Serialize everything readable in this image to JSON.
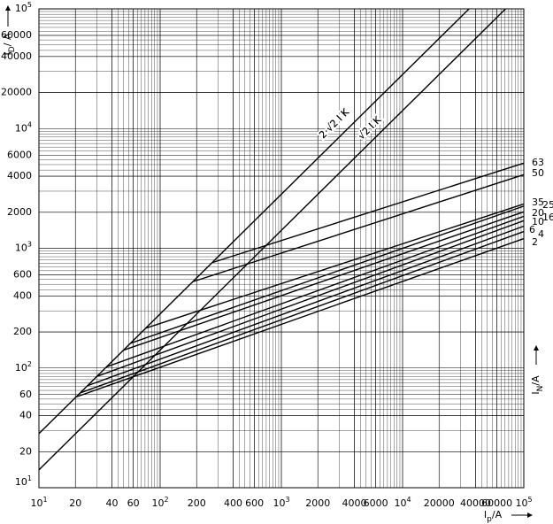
{
  "chart_data": {
    "type": "line",
    "log_x": true,
    "log_y": true,
    "grid": "log-minor",
    "x_label": {
      "symbol": "I",
      "sub": "p",
      "unit": "/A"
    },
    "y_label": {
      "symbol": "I",
      "sub": "D",
      "unit": "/ A"
    },
    "legend_label": {
      "symbol": "I",
      "sub": "N",
      "unit": "/A"
    },
    "xlim": [
      10,
      100000
    ],
    "ylim": [
      10,
      100000
    ],
    "xticks": [
      {
        "value": 10,
        "label": "10",
        "exp": "1"
      },
      20,
      40,
      60,
      {
        "value": 100,
        "label": "10",
        "exp": "2"
      },
      200,
      400,
      600,
      {
        "value": 1000,
        "label": "10",
        "exp": "3"
      },
      2000,
      4000,
      6000,
      {
        "value": 10000,
        "label": "10",
        "exp": "4"
      },
      20000,
      40000,
      60000,
      {
        "value": 100000,
        "label": "10",
        "exp": "5"
      }
    ],
    "yticks": [
      {
        "value": 10,
        "label": "10",
        "exp": "1"
      },
      20,
      40,
      60,
      {
        "value": 100,
        "label": "10",
        "exp": "2"
      },
      200,
      400,
      600,
      {
        "value": 1000,
        "label": "10",
        "exp": "3"
      },
      2000,
      4000,
      6000,
      {
        "value": 10000,
        "label": "10",
        "exp": "4"
      },
      20000,
      40000,
      60000,
      {
        "value": 100000,
        "label": "10",
        "exp": "5"
      }
    ],
    "reference_lines": [
      {
        "name": "2·√2 I K",
        "color": "#000000",
        "x": [
          10,
          35355
        ],
        "values": [
          28.3,
          100000
        ]
      },
      {
        "name": "√2 I K",
        "color": "#000000",
        "x": [
          10,
          70711
        ],
        "values": [
          14.1,
          100000
        ]
      }
    ],
    "series": [
      {
        "name": "63",
        "color": "#000000",
        "x": [
          270,
          100000
        ],
        "values": [
          760,
          5140
        ]
      },
      {
        "name": "50",
        "color": "#000000",
        "x": [
          186,
          100000
        ],
        "values": [
          526,
          4120
        ]
      },
      {
        "name": "35",
        "color": "#000000",
        "x": [
          76,
          100000
        ],
        "values": [
          215,
          2345
        ]
      },
      {
        "name": "25",
        "color": "#000000",
        "x": [
          57,
          100000
        ],
        "values": [
          161,
          2250
        ]
      },
      {
        "name": "20",
        "color": "#000000",
        "x": [
          50,
          100000
        ],
        "values": [
          141,
          2015
        ]
      },
      {
        "name": "16",
        "color": "#000000",
        "x": [
          36,
          100000
        ],
        "values": [
          102,
          1850
        ]
      },
      {
        "name": "10",
        "color": "#000000",
        "x": [
          30,
          100000
        ],
        "values": [
          85,
          1700
        ]
      },
      {
        "name": "6",
        "color": "#000000",
        "x": [
          25,
          100000
        ],
        "values": [
          71,
          1530
        ]
      },
      {
        "name": "4",
        "color": "#000000",
        "x": [
          22,
          100000
        ],
        "values": [
          62,
          1380
        ]
      },
      {
        "name": "2",
        "color": "#000000",
        "x": [
          20,
          100000
        ],
        "values": [
          57,
          1205
        ]
      }
    ]
  }
}
